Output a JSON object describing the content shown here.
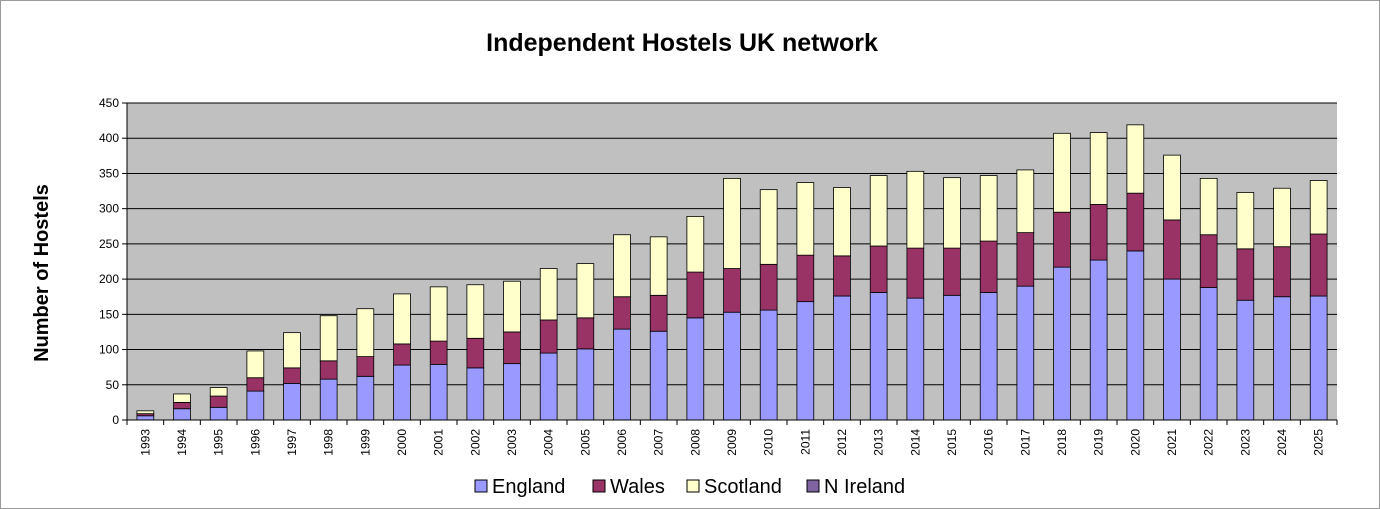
{
  "chart_data": {
    "type": "bar",
    "stacked": true,
    "title": "Independent Hostels UK network",
    "ylabel": "Number of Hostels",
    "xlabel": "",
    "ylim": [
      0,
      450
    ],
    "yticks": [
      0,
      50,
      100,
      150,
      200,
      250,
      300,
      350,
      400,
      450
    ],
    "grid": true,
    "legend_position": "bottom",
    "plot_background": "#c0c0c0",
    "categories": [
      "1993",
      "1994",
      "1995",
      "1996",
      "1997",
      "1998",
      "1999",
      "2000",
      "2001",
      "2002",
      "2003",
      "2004",
      "2005",
      "2006",
      "2007",
      "2008",
      "2009",
      "2010",
      "2011",
      "2012",
      "2013",
      "2014",
      "2015",
      "2016",
      "2017",
      "2018",
      "2019",
      "2020",
      "2021",
      "2022",
      "2023",
      "2024",
      "2025"
    ],
    "series": [
      {
        "name": "England",
        "color": "#9999ff",
        "values": [
          6,
          16,
          18,
          41,
          52,
          58,
          62,
          78,
          79,
          74,
          80,
          95,
          101,
          129,
          126,
          145,
          153,
          156,
          168,
          176,
          181,
          173,
          177,
          181,
          190,
          217,
          227,
          240,
          200,
          188,
          170,
          175,
          176
        ]
      },
      {
        "name": "Wales",
        "color": "#993366",
        "values": [
          3,
          9,
          16,
          19,
          22,
          26,
          28,
          30,
          33,
          42,
          45,
          47,
          44,
          46,
          51,
          65,
          62,
          65,
          66,
          57,
          66,
          71,
          67,
          73,
          76,
          78,
          79,
          82,
          84,
          75,
          73,
          71,
          88
        ]
      },
      {
        "name": "Scotland",
        "color": "#ffffcc",
        "values": [
          4,
          12,
          12,
          38,
          50,
          64,
          68,
          71,
          77,
          76,
          72,
          73,
          77,
          88,
          83,
          79,
          128,
          106,
          103,
          97,
          100,
          109,
          100,
          93,
          89,
          112,
          102,
          97,
          92,
          80,
          80,
          83,
          76
        ]
      },
      {
        "name": "N Ireland",
        "color": "#8064a2",
        "values": [
          0,
          0,
          0,
          0,
          0,
          0,
          0,
          0,
          0,
          0,
          0,
          0,
          0,
          0,
          0,
          0,
          0,
          0,
          0,
          0,
          0,
          0,
          0,
          0,
          0,
          0,
          0,
          0,
          0,
          0,
          0,
          0,
          0
        ]
      }
    ]
  }
}
